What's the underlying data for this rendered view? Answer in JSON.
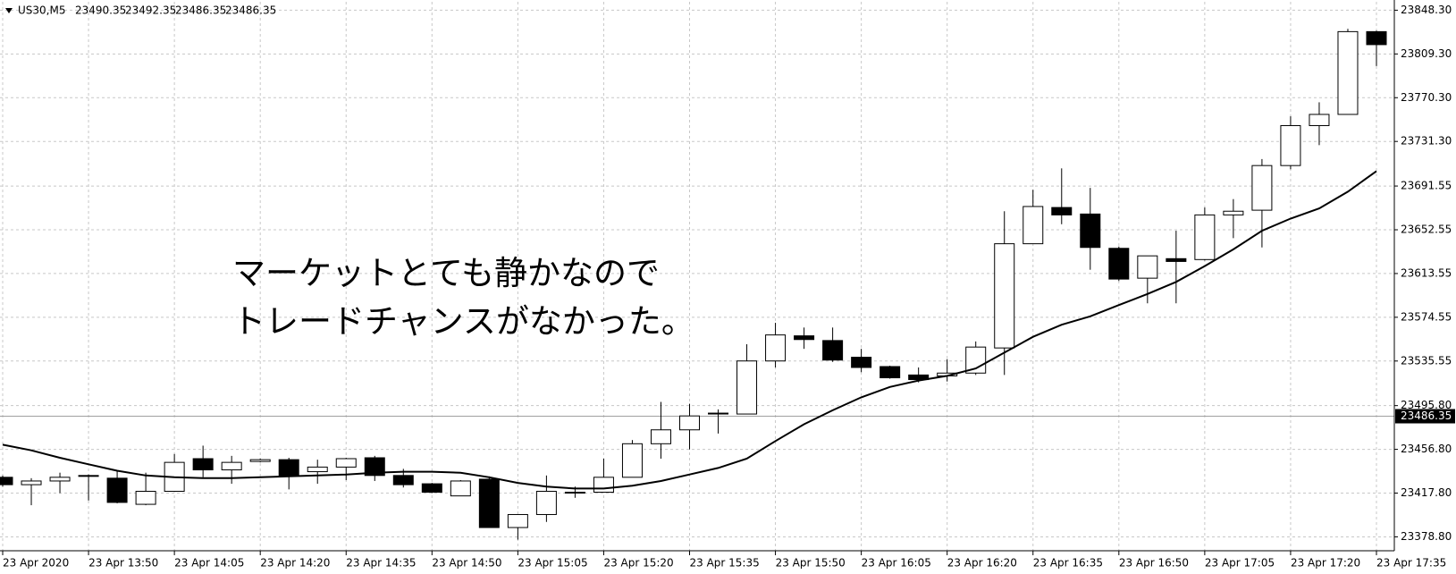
{
  "header": {
    "symbol": "US30,M5",
    "ohlc": [
      23490.35,
      23492.35,
      23486.35,
      23486.35
    ]
  },
  "chart_data": {
    "type": "candlestick",
    "annotation": [
      "マーケットとても静かなので",
      "トレードチャンスがなかった。"
    ],
    "categories": [
      "23 Apr 2020",
      null,
      null,
      "23 Apr 13:50",
      null,
      null,
      "23 Apr 14:05",
      null,
      null,
      "23 Apr 14:20",
      null,
      null,
      "23 Apr 14:35",
      null,
      null,
      "23 Apr 14:50",
      null,
      null,
      "23 Apr 15:05",
      null,
      null,
      "23 Apr 15:20",
      null,
      null,
      "23 Apr 15:35",
      null,
      null,
      "23 Apr 15:50",
      null,
      null,
      "23 Apr 16:05",
      null,
      null,
      "23 Apr 16:20",
      null,
      null,
      "23 Apr 16:35",
      null,
      null,
      "23 Apr 16:50",
      null,
      null,
      "23 Apr 17:05",
      null,
      null,
      "23 Apr 17:20",
      null,
      null,
      "23 Apr 17:35"
    ],
    "open": [
      23431.9,
      23425.3,
      23428.6,
      23433.5,
      23431.1,
      23407.8,
      23419.4,
      23448.5,
      23438.5,
      23446.0,
      23447.6,
      23436.9,
      23441.0,
      23449.3,
      23433.5,
      23426.1,
      23415.3,
      23430.2,
      23387.1,
      23398.7,
      23418.6,
      23418.6,
      23431.9,
      23461.8,
      23474.2,
      23488.3,
      23488.3,
      23535.6,
      23558.0,
      23553.8,
      23538.9,
      23530.6,
      23523.1,
      23522.3,
      23524.8,
      23547.2,
      23640.1,
      23672.4,
      23666.6,
      23636.0,
      23609.4,
      23626.8,
      23626.0,
      23665.8,
      23670.0,
      23709.8,
      23745.4,
      23755.4,
      23829.2
    ],
    "high": [
      23433.5,
      23431.1,
      23436.0,
      23434.4,
      23437.7,
      23436.0,
      23452.6,
      23460.1,
      23451.0,
      23448.5,
      23449.3,
      23447.6,
      23449.3,
      23451.0,
      23439.4,
      23426.9,
      23429.4,
      23432.7,
      23398.7,
      23433.5,
      23423.6,
      23448.5,
      23465.1,
      23499.1,
      23497.4,
      23492.4,
      23550.5,
      23569.6,
      23565.4,
      23565.4,
      23546.4,
      23531.4,
      23529.8,
      23537.2,
      23553.0,
      23669.1,
      23688.2,
      23707.3,
      23689.9,
      23637.6,
      23629.3,
      23651.7,
      23672.4,
      23679.9,
      23715.6,
      23753.7,
      23766.2,
      23831.7,
      23830.1
    ],
    "low": [
      23423.6,
      23407.0,
      23417.8,
      23411.2,
      23408.7,
      23407.0,
      23419.4,
      23431.9,
      23426.1,
      23445.2,
      23421.1,
      23426.1,
      23429.4,
      23428.6,
      23422.8,
      23417.8,
      23415.3,
      23387.1,
      23376.3,
      23392.1,
      23413.6,
      23418.6,
      23431.9,
      23448.5,
      23456.8,
      23470.9,
      23488.3,
      23529.8,
      23546.4,
      23534.8,
      23525.6,
      23519.8,
      23516.5,
      23517.3,
      23523.1,
      23523.1,
      23640.1,
      23657.5,
      23616.9,
      23606.9,
      23587.0,
      23587.0,
      23625.2,
      23645.1,
      23636.8,
      23706.5,
      23728.0,
      23755.4,
      23798.5
    ],
    "close": [
      23425.3,
      23428.6,
      23431.9,
      23433.5,
      23409.5,
      23419.4,
      23445.2,
      23438.5,
      23445.2,
      23447.6,
      23433.5,
      23441.0,
      23448.5,
      23433.5,
      23425.3,
      23418.6,
      23428.6,
      23387.1,
      23398.7,
      23419.4,
      23418.6,
      23431.9,
      23461.8,
      23474.2,
      23486.6,
      23489.1,
      23535.6,
      23558.8,
      23554.7,
      23536.4,
      23529.8,
      23520.6,
      23519.0,
      23524.8,
      23548.0,
      23640.1,
      23673.3,
      23665.8,
      23636.8,
      23608.6,
      23629.3,
      23624.3,
      23665.8,
      23669.1,
      23709.8,
      23745.4,
      23755.4,
      23829.2,
      23817.6
    ],
    "moving_average": [
      23460.9,
      23455.9,
      23449.3,
      23443.5,
      23437.7,
      23433.5,
      23431.9,
      23431.1,
      23431.1,
      23431.9,
      23432.7,
      23433.5,
      23434.4,
      23436.0,
      23436.9,
      23436.9,
      23436.0,
      23431.9,
      23426.9,
      23423.6,
      23421.9,
      23421.9,
      23424.4,
      23428.6,
      23434.4,
      23440.2,
      23448.5,
      23464.2,
      23479.2,
      23491.6,
      23503.2,
      23512.4,
      23518.2,
      23522.3,
      23528.9,
      23543.0,
      23557.1,
      23567.9,
      23575.4,
      23585.4,
      23595.3,
      23606.1,
      23620.2,
      23635.1,
      23651.7,
      23662.5,
      23671.6,
      23686.5,
      23704.8
    ],
    "up_color": "#ffffff",
    "down_color": "#000000",
    "ma_color": "#000000",
    "current_price": 23486.35,
    "ylim": [
      23366.4,
      23855.8
    ],
    "yticks": [
      {
        "value": 23378.8,
        "label": "23378.80"
      },
      {
        "value": 23417.8,
        "label": "23417.80"
      },
      {
        "value": 23456.8,
        "label": "23456.80"
      },
      {
        "value": 23495.8,
        "label": "23495.80"
      },
      23535.55,
      23574.55,
      23613.55,
      23652.55,
      23691.55,
      {
        "value": 23731.3,
        "label": "23731.30"
      },
      {
        "value": 23770.3,
        "label": "23770.30"
      },
      {
        "value": 23809.3,
        "label": "23809.30"
      },
      {
        "value": 23848.3,
        "label": "23848.30"
      }
    ],
    "grid": true
  }
}
